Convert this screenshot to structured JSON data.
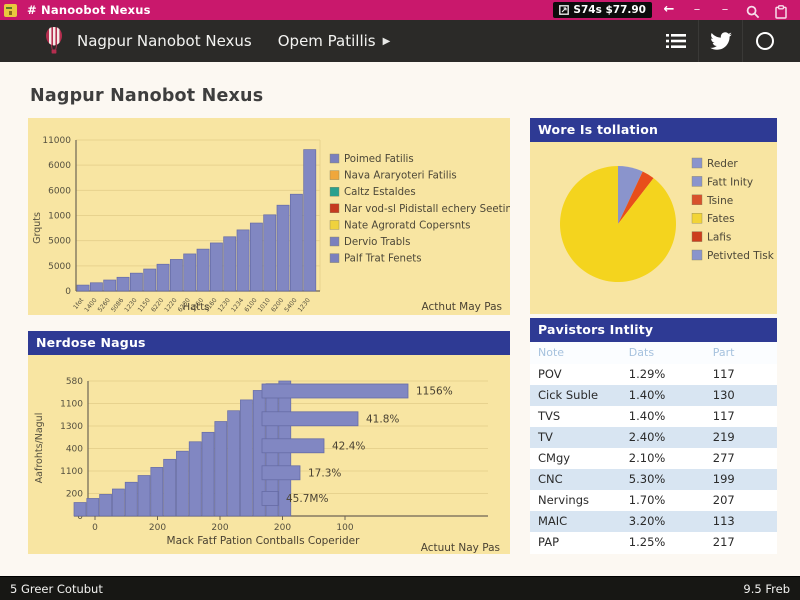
{
  "window": {
    "titlebar": {
      "title": "# Nanoobot Nexus",
      "badge": "S74s $77.90",
      "icons": [
        "back-arrow",
        "minimize",
        "minimize",
        "search",
        "clipboard"
      ]
    },
    "navbar": {
      "brand": "Nagpur Nanobot Nexus",
      "menu": "Opem Patillis",
      "menu_caret": "▶",
      "icons": [
        "list",
        "twitter",
        "circle"
      ]
    },
    "statusbar": {
      "left": "5 Greer Cotubut",
      "right": "9.5 Freb"
    }
  },
  "page": {
    "heading": "Nagpur Nanobot Nexus"
  },
  "colors": {
    "titlebar_bg": "#c9186c",
    "navbar_bg": "#2b2a28",
    "panel_bg": "#f8e5a2",
    "header_bg": "#2e3a94",
    "bar_fill": "#8187c2",
    "bar_stroke": "#666ca6",
    "grid": "#e7d28e",
    "axis": "#6e6554",
    "chart_text": "#55503f"
  },
  "chart_data": [
    {
      "id": "hatts_bar",
      "type": "bar",
      "panel_title": "",
      "ylabel": "Grquts",
      "xlabel": "Hatts",
      "footnote": "Acthut May Pas",
      "y_ticks": [
        "11000",
        "6000",
        "6000",
        "1000",
        "5000",
        "5000",
        "0"
      ],
      "ymax": 11000,
      "categories": [
        "1fot",
        "1400",
        "5260",
        "5086",
        "1230",
        "1150",
        "6220",
        "1220",
        "6230",
        "1750",
        "1160",
        "1230",
        "1234",
        "6100",
        "1010",
        "6200",
        "5400",
        "1230"
      ],
      "values": [
        430,
        600,
        800,
        1000,
        1300,
        1600,
        1950,
        2300,
        2700,
        3050,
        3500,
        3950,
        4450,
        4950,
        5550,
        6250,
        7050,
        10300
      ],
      "legend": [
        {
          "label": "Poimed Fatilis",
          "color": "#7b80bd"
        },
        {
          "label": "Nava Araryoteri Fatilis",
          "color": "#efa73c"
        },
        {
          "label": "Caltz Estaldes",
          "color": "#2aa08e"
        },
        {
          "label": "Nar vod-sl Pidistall echery Seeting",
          "color": "#c53a20"
        },
        {
          "label": "Nate Agroratd Copersnts",
          "color": "#efd23d"
        },
        {
          "label": "Dervio Trabls",
          "color": "#7b80bd"
        },
        {
          "label": "Palf Trat Fenets",
          "color": "#7b80bd"
        }
      ]
    },
    {
      "id": "pie",
      "type": "pie",
      "panel_title": "Wore Is tollation",
      "slices": [
        {
          "label": "Reder",
          "value": 7,
          "color": "#8a94cc"
        },
        {
          "label": "Tsine",
          "value": 3.5,
          "color": "#e84e1b"
        },
        {
          "label": "Fates",
          "value": 89.5,
          "color": "#f4d41e"
        }
      ],
      "legend": [
        {
          "label": "Reder",
          "color": "#8a94cc"
        },
        {
          "label": "Fatt Inity",
          "color": "#8a94cc"
        },
        {
          "label": "Tsine",
          "color": "#d8512c"
        },
        {
          "label": "Fates",
          "color": "#f2d437"
        },
        {
          "label": "Lafis",
          "color": "#cc3d1d"
        },
        {
          "label": "Petivted Tisk",
          "color": "#8a94cc"
        }
      ]
    },
    {
      "id": "pareto",
      "type": "bar",
      "panel_title": "Nerdose Nagus",
      "ylabel": "Aafrohts/Nagul",
      "xlabel": "Mack Fatf Pation Contballs Coperider",
      "footnote": "Actuut Nay Pas",
      "y_ticks": [
        "580",
        "1100",
        "1300",
        "400",
        "1100",
        "200",
        "0"
      ],
      "x_ticks": [
        "0",
        "200",
        "200",
        "200",
        "100"
      ],
      "ramp_values": [
        0.1,
        0.13,
        0.16,
        0.2,
        0.25,
        0.3,
        0.36,
        0.42,
        0.48,
        0.55,
        0.62,
        0.7,
        0.78,
        0.86,
        0.93,
        0.98,
        1.0
      ],
      "hbars": [
        {
          "label": "1156%",
          "x0": 0.435,
          "x1": 0.8,
          "y": 0.074
        },
        {
          "label": "41.8%",
          "x0": 0.435,
          "x1": 0.675,
          "y": 0.28
        },
        {
          "label": "42.4%",
          "x0": 0.435,
          "x1": 0.59,
          "y": 0.48
        },
        {
          "label": "17.3%",
          "x0": 0.435,
          "x1": 0.53,
          "y": 0.68
        },
        {
          "label": "45.7M%",
          "x0": 0.435,
          "x1": 0.475,
          "y": 0.87
        }
      ]
    },
    {
      "id": "visitors_table",
      "type": "table",
      "panel_title": "Pavistors Intlity",
      "columns": [
        "Note",
        "Dats",
        "Part"
      ],
      "rows": [
        [
          "POV",
          "1.29%",
          "117"
        ],
        [
          "Cick Suble",
          "1.40%",
          "130"
        ],
        [
          "TVS",
          "1.40%",
          "117"
        ],
        [
          "TV",
          "2.40%",
          "219"
        ],
        [
          "CMgy",
          "2.10%",
          "277"
        ],
        [
          "CNC",
          "5.30%",
          "199"
        ],
        [
          "Nervings",
          "1.70%",
          "207"
        ],
        [
          "MAIC",
          "3.20%",
          "113"
        ],
        [
          "PAP",
          "1.25%",
          "217"
        ]
      ]
    }
  ]
}
